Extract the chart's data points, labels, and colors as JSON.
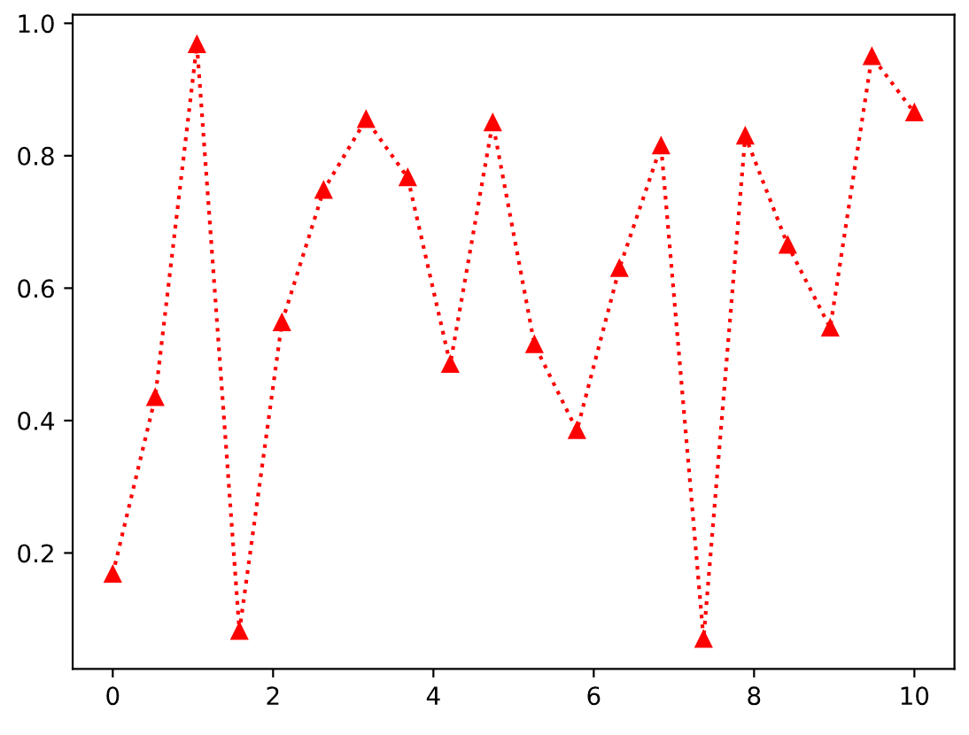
{
  "chart_data": {
    "type": "line",
    "x": [
      0,
      0.53,
      1.05,
      1.58,
      2.11,
      2.63,
      3.16,
      3.68,
      4.21,
      4.74,
      5.26,
      5.79,
      6.32,
      6.84,
      7.37,
      7.89,
      8.42,
      8.95,
      9.47,
      10
    ],
    "series": [
      {
        "color": "#ff0000",
        "values": [
          0.168,
          0.435,
          0.968,
          0.082,
          0.548,
          0.748,
          0.855,
          0.767,
          0.485,
          0.85,
          0.515,
          0.385,
          0.63,
          0.815,
          0.07,
          0.83,
          0.665,
          0.54,
          0.95,
          0.865
        ]
      }
    ],
    "marker": "triangle",
    "line_style": "dotted",
    "grid": false,
    "legend": false,
    "xlim": [
      -0.5,
      10.5
    ],
    "xticks": [
      0,
      2,
      4,
      6,
      8,
      10
    ],
    "ylim": [
      0.025,
      1.013
    ],
    "yticks": [
      0.2,
      0.4,
      0.6,
      0.8,
      {
        "value": 1,
        "label": "1.0"
      }
    ]
  }
}
